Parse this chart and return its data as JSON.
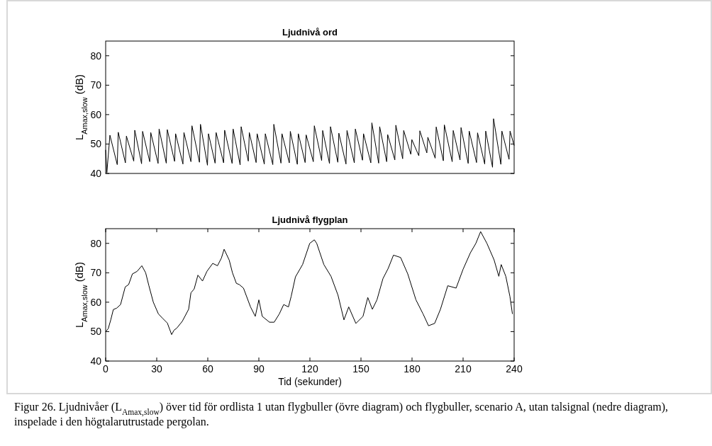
{
  "chart_data": [
    {
      "type": "line",
      "title": "Ljudnivå ord",
      "ylabel": "L$_{Amax,slow}$ (dB)",
      "xlim": [
        0,
        240
      ],
      "ylim": [
        40,
        85
      ],
      "yticks": [
        40,
        50,
        60,
        70,
        80
      ],
      "tick_labels": "y",
      "grid": false,
      "marker": "none",
      "line_style": "solid",
      "series": [
        {
          "color": "#000000",
          "x": [
            0,
            0.7,
            2.5,
            6.8,
            7.4,
            11.6,
            12.2,
            16.5,
            17.1,
            21.1,
            21.7,
            25.9,
            26.5,
            30.8,
            31.4,
            35.6,
            36.2,
            40.5,
            41.1,
            45.4,
            46.0,
            50.1,
            50.7,
            55.1,
            55.7,
            59.8,
            60.4,
            64.3,
            64.9,
            69.3,
            69.9,
            74.3,
            74.9,
            79.0,
            79.6,
            83.8,
            84.4,
            88.4,
            89.0,
            93.2,
            93.8,
            98.2,
            98.8,
            103.0,
            103.6,
            107.9,
            108.5,
            112.6,
            113.2,
            117.2,
            117.8,
            122.0,
            122.6,
            126.9,
            127.5,
            131.5,
            132.1,
            136.4,
            137.0,
            141.2,
            141.8,
            146.1,
            146.7,
            150.9,
            151.5,
            155.8,
            156.4,
            160.4,
            161.0,
            165.1,
            165.7,
            169.9,
            170.5,
            174.5,
            175.1,
            179.3,
            179.9,
            184.0,
            184.6,
            188.7,
            189.3,
            193.6,
            194.2,
            198.4,
            199.0,
            203.6,
            204.2,
            208.2,
            208.8,
            213.0,
            213.6,
            217.9,
            218.5,
            222.7,
            223.3,
            227.3,
            227.9,
            232.2,
            232.8,
            237.0,
            237.6,
            240
          ],
          "values": [
            48,
            40.3,
            53,
            43,
            54,
            43.6,
            52.7,
            44.2,
            54.7,
            43.3,
            54.3,
            44,
            53.9,
            43.4,
            55.1,
            43.5,
            54.9,
            44.1,
            53.5,
            43.2,
            53.9,
            44,
            56.2,
            43.8,
            56.7,
            42.8,
            53.5,
            43.5,
            53.9,
            43.6,
            54.7,
            43.4,
            55.1,
            42.9,
            55.9,
            44.2,
            53.9,
            43.7,
            53.5,
            43.2,
            53.5,
            43,
            56.7,
            43.5,
            53.5,
            43.6,
            54.3,
            43.1,
            53.5,
            43.7,
            53.1,
            44,
            56.2,
            44.4,
            54.6,
            43.4,
            55.9,
            43.8,
            53.7,
            43.2,
            54.6,
            43.6,
            55.1,
            44.5,
            53.5,
            43.6,
            57.2,
            43.5,
            55.9,
            44,
            53.2,
            44.6,
            56.4,
            45,
            54.6,
            46.5,
            51.5,
            46,
            54.5,
            47,
            52.3,
            45.2,
            55.8,
            44.3,
            56.5,
            44,
            54.6,
            44.6,
            55.6,
            43.4,
            54.4,
            43.7,
            53.8,
            43.2,
            54.4,
            42.1,
            58.6,
            43.1,
            54.4,
            44.8,
            54.4,
            49.5
          ]
        }
      ]
    },
    {
      "type": "line",
      "title": "Ljudnivå flygplan",
      "xlabel": "Tid (sekunder)",
      "ylabel": "L$_{Amax,slow}$ (dB)",
      "xlim": [
        0,
        240
      ],
      "xticks": [
        0,
        30,
        60,
        90,
        120,
        150,
        180,
        210,
        240
      ],
      "ylim": [
        40,
        85
      ],
      "yticks": [
        40,
        50,
        60,
        70,
        80
      ],
      "grid": false,
      "marker": "none",
      "line_style": "solid",
      "annotations": [
        "Figur 26. Ljudnivåer (L$_{Amax,slow}$) över tid för ordlista 1 utan flygbuller (övre diagram) och flygbuller, scenario A, utan talsignal (nedre diagram), inspelade i den högtalarutrustade pergolan."
      ],
      "series": [
        {
          "color": "#000000",
          "x": [
            0,
            1.5,
            3,
            4.5,
            6.5,
            8.75,
            11.5,
            13.5,
            15.7,
            18.5,
            21.25,
            23.5,
            25.4,
            28,
            31,
            33.5,
            36.25,
            38.75,
            40.2,
            41.8,
            45,
            48.75,
            50.1,
            52,
            54.2,
            56.9,
            59.5,
            62.9,
            65.7,
            68,
            69.6,
            72.6,
            74.5,
            76.8,
            78.5,
            80.97,
            85.1,
            87.9,
            90,
            92,
            96.25,
            99,
            102,
            104.6,
            107.4,
            109,
            111.5,
            115.7,
            119.9,
            122.6,
            124,
            128.2,
            132.4,
            136.5,
            140,
            142.8,
            147,
            151.2,
            154,
            156.7,
            159.4,
            162.9,
            166,
            169.1,
            173.3,
            177.5,
            182.3,
            186.5,
            189.7,
            193.3,
            196.7,
            201,
            205.9,
            210,
            214.3,
            217.5,
            220.3,
            224,
            228.2,
            231,
            232.4,
            235.1,
            237.5,
            239
          ],
          "values": [
            50,
            51,
            54,
            57.5,
            58,
            59.2,
            65.2,
            66,
            69.6,
            70.5,
            72.4,
            70,
            65.6,
            60,
            56,
            54.5,
            52.9,
            49,
            50.5,
            51.2,
            53.5,
            57.6,
            63.2,
            64.5,
            69.2,
            67.2,
            70.5,
            73.2,
            72.4,
            75,
            78,
            74.3,
            70,
            66.4,
            66,
            64.8,
            58.4,
            55.2,
            60.8,
            55.2,
            53.2,
            53.2,
            56,
            59.2,
            58.4,
            62,
            68.6,
            72.8,
            80,
            81.2,
            80,
            72.8,
            68.8,
            62.4,
            54,
            58.4,
            52.8,
            55.2,
            61.6,
            57.6,
            60.8,
            68,
            71.5,
            76,
            75.2,
            69.6,
            60.8,
            56,
            52,
            52.8,
            57.6,
            65.6,
            64.8,
            71.2,
            76.8,
            80,
            84,
            80,
            74.4,
            68.8,
            72.8,
            68.8,
            62,
            56
          ]
        }
      ]
    }
  ]
}
